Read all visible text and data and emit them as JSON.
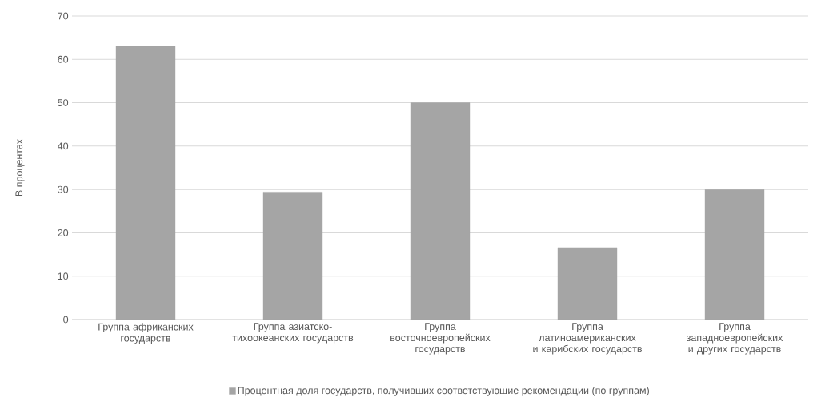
{
  "chart_data": {
    "type": "bar",
    "ylabel": "В процентах",
    "categories": [
      "Группа африканских государств",
      "Группа азиатско-тихоокеанских государств",
      "Группа восточноевропейских государств",
      "Группа латиноамериканских и карибских государств",
      "Группа западноевропейских и других государств"
    ],
    "series": [
      {
        "name": "Процентная доля государств, получивших соответствующие рекомендации (по группам)",
        "color": "#a5a5a5",
        "values": [
          63,
          29.4,
          50,
          16.6,
          30
        ]
      }
    ],
    "ylim": [
      0,
      70
    ],
    "yticks": [
      0,
      10,
      20,
      30,
      40,
      50,
      60,
      70
    ],
    "grid": "y",
    "legend": "bottom"
  }
}
